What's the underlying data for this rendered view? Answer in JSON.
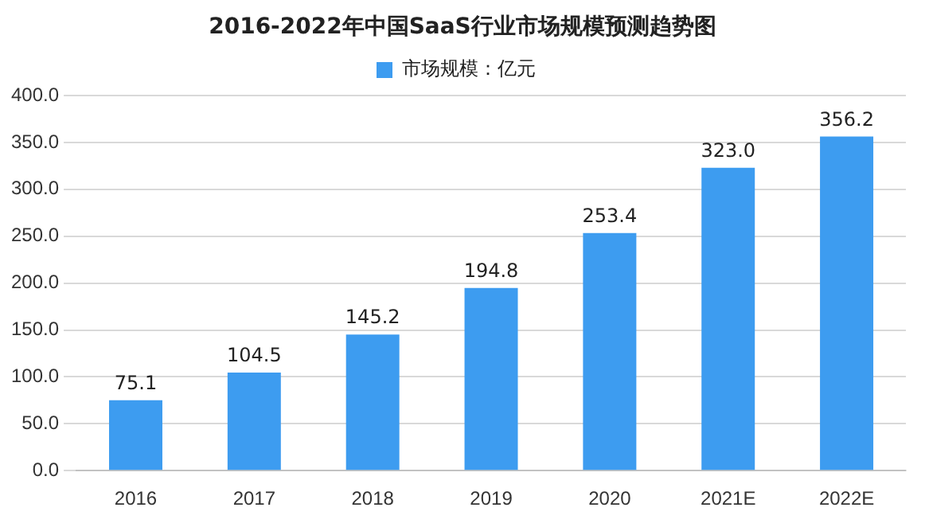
{
  "chart_data": {
    "type": "bar",
    "title": "2016-2022年中国SaaS行业市场规模预测趋势图",
    "categories": [
      "2016",
      "2017",
      "2018",
      "2019",
      "2020",
      "2021E",
      "2022E"
    ],
    "series": [
      {
        "name": "市场规模：亿元",
        "color": "#3d9cf0",
        "values": [
          75.1,
          104.5,
          145.2,
          194.8,
          253.4,
          323.0,
          356.2
        ],
        "value_labels": [
          "75.1",
          "104.5",
          "145.2",
          "194.8",
          "253.4",
          "323.0",
          "356.2"
        ]
      }
    ],
    "ylim": [
      0,
      400
    ],
    "yticks": [
      {
        "value": 0,
        "label": "0.0"
      },
      {
        "value": 50,
        "label": "50.0"
      },
      {
        "value": 100,
        "label": "100.0"
      },
      {
        "value": 150,
        "label": "150.0"
      },
      {
        "value": 200,
        "label": "200.0"
      },
      {
        "value": 250,
        "label": "250.0"
      },
      {
        "value": 300,
        "label": "300.0"
      },
      {
        "value": 350,
        "label": "350.0"
      },
      {
        "value": 400,
        "label": "400.0"
      }
    ],
    "grid": "y",
    "legend": "top"
  }
}
